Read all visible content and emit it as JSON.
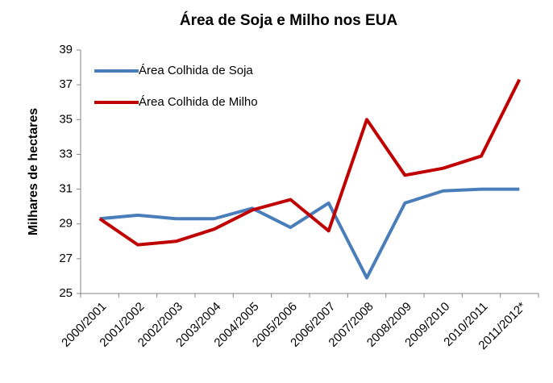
{
  "chart_data": {
    "type": "line",
    "title": "Área de Soja e Milho nos EUA",
    "y_label": "Milhares de hectares",
    "categories": [
      "2000/2001",
      "2001/2002",
      "2002/2003",
      "2003/2004",
      "2004/2005",
      "2005/2006",
      "2006/2007",
      "2007/2008",
      "2008/2009",
      "2009/2010",
      "2010/2011",
      "2011/2012*"
    ],
    "series": [
      {
        "name": "Área Colhida de Soja",
        "color": "#4a7ebb",
        "values": [
          29.3,
          29.5,
          29.3,
          29.3,
          29.9,
          28.8,
          30.2,
          25.9,
          30.2,
          30.9,
          31.0,
          31.0
        ]
      },
      {
        "name": "Área Colhida de Milho",
        "color": "#c00000",
        "values": [
          29.3,
          27.8,
          28.0,
          28.7,
          29.8,
          30.4,
          28.6,
          35.0,
          31.8,
          32.2,
          32.9,
          37.3
        ]
      }
    ],
    "ylim": [
      25,
      39
    ],
    "yticks": [
      25,
      27,
      29,
      31,
      33,
      35,
      37,
      39
    ],
    "grid": false,
    "legend": "top-left"
  }
}
